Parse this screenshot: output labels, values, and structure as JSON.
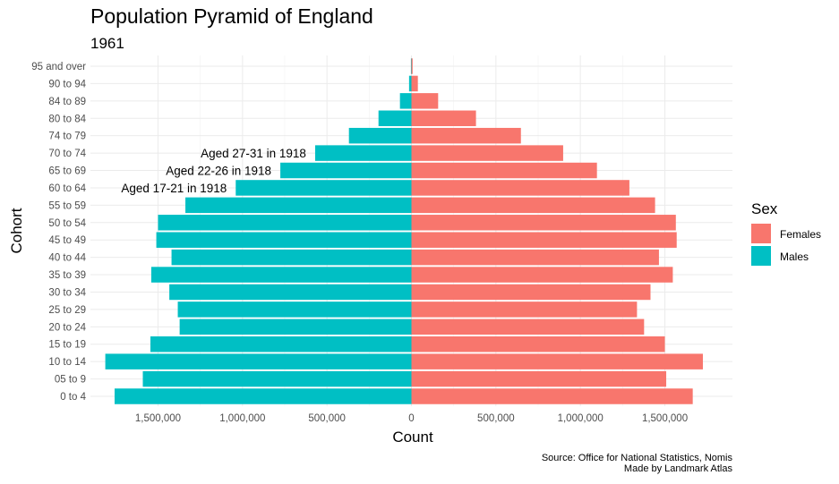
{
  "chart_data": {
    "type": "bar",
    "orientation": "horizontal",
    "title": "Population Pyramid of England",
    "subtitle": "1961",
    "xlabel": "Count",
    "ylabel": "Cohort",
    "xlim": [
      -1900000,
      1900000
    ],
    "x_ticks": [
      {
        "value": -1500000,
        "label": "1,500,000"
      },
      {
        "value": -1000000,
        "label": "1,000,000"
      },
      {
        "value": -500000,
        "label": "500,000"
      },
      {
        "value": 0,
        "label": "0"
      },
      {
        "value": 500000,
        "label": "500,000"
      },
      {
        "value": 1000000,
        "label": "1,000,000"
      },
      {
        "value": 1500000,
        "label": "1,500,000"
      }
    ],
    "categories": [
      "0 to 4",
      "05 to 9",
      "10 to 14",
      "15 to 19",
      "20 to 24",
      "25 to 29",
      "30 to 34",
      "35 to 39",
      "40 to 44",
      "45 to 49",
      "50 to 54",
      "55 to 59",
      "60 to 64",
      "65 to 69",
      "70 to 74",
      "74 to 79",
      "80 to 84",
      "84 to 89",
      "90 to 94",
      "95 and over"
    ],
    "series": [
      {
        "name": "Females",
        "color": "#F8766D",
        "values": [
          1665000,
          1508000,
          1725000,
          1500000,
          1377000,
          1335000,
          1415000,
          1547000,
          1465000,
          1570000,
          1565000,
          1442000,
          1290000,
          1098000,
          898000,
          648000,
          382000,
          158000,
          38000,
          7000
        ]
      },
      {
        "name": "Males",
        "color": "#00BFC4",
        "values": [
          1757000,
          1590000,
          1812000,
          1545000,
          1372000,
          1383000,
          1433000,
          1540000,
          1420000,
          1510000,
          1500000,
          1338000,
          1040000,
          776000,
          570000,
          370000,
          195000,
          68000,
          14000,
          3000
        ]
      }
    ],
    "annotations": [
      {
        "text": "Aged 27-31 in 1918",
        "category": "70 to 74"
      },
      {
        "text": "Aged 22-26 in 1918",
        "category": "65 to 69"
      },
      {
        "text": "Aged 17-21 in 1918",
        "category": "60 to 64"
      }
    ],
    "legend": {
      "title": "Sex",
      "placement": "right",
      "entries": [
        "Females",
        "Males"
      ]
    },
    "grid": true,
    "caption": [
      "Source: Office for National Statistics, Nomis",
      "Made by Landmark Atlas"
    ]
  }
}
